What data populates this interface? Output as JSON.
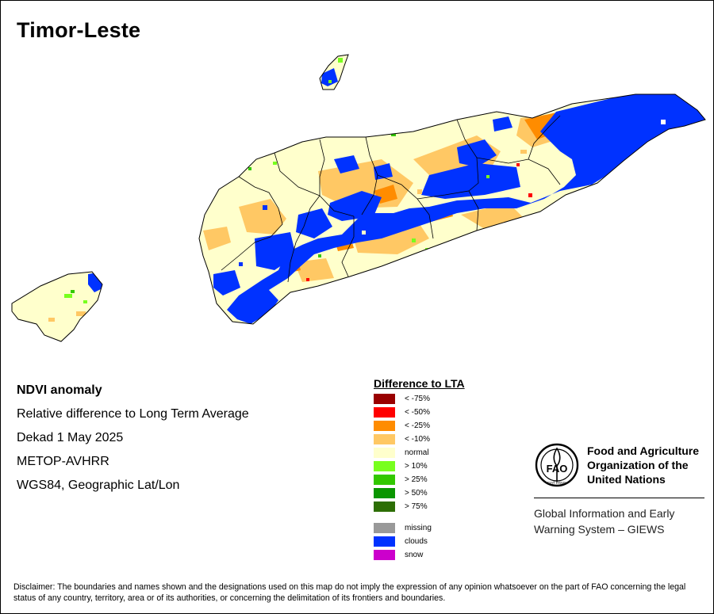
{
  "title": "Timor-Leste",
  "info_lines": [
    "NDVI anomaly",
    "Relative difference to Long Term Average",
    "Dekad 1 May 2025",
    "METOP-AVHRR",
    "WGS84, Geographic Lat/Lon"
  ],
  "legend": {
    "title": "Difference to LTA",
    "items": [
      {
        "label": "< -75%",
        "color": "#990000"
      },
      {
        "label": "< -50%",
        "color": "#ff0000"
      },
      {
        "label": "< -25%",
        "color": "#ff8c00"
      },
      {
        "label": "< -10%",
        "color": "#ffc864"
      },
      {
        "label": "normal",
        "color": "#ffffcc"
      },
      {
        "label": "> 10%",
        "color": "#78ff1e"
      },
      {
        "label": "> 25%",
        "color": "#32c800"
      },
      {
        "label": "> 50%",
        "color": "#0a9600"
      },
      {
        "label": "> 75%",
        "color": "#2d6e05"
      },
      {
        "label": "missing",
        "color": "#999999"
      },
      {
        "label": "clouds",
        "color": "#0032ff"
      },
      {
        "label": "snow",
        "color": "#cc00cc"
      }
    ]
  },
  "org": {
    "name_lines": [
      "Food and Agriculture",
      "Organization of the",
      "United Nations"
    ],
    "logo_letters": "FAO",
    "logo_motto": "FIAT PANIS",
    "system_lines": [
      "Global Information and Early",
      "Warning System – GIEWS"
    ]
  },
  "disclaimer": "Disclaimer: The boundaries and names shown and the designations used on this map do not imply the expression of any opinion whatsoever on the part of FAO concerning the legal status of any country, territory, area or of its authorities, or concerning the delimitation of its frontiers and boundaries."
}
